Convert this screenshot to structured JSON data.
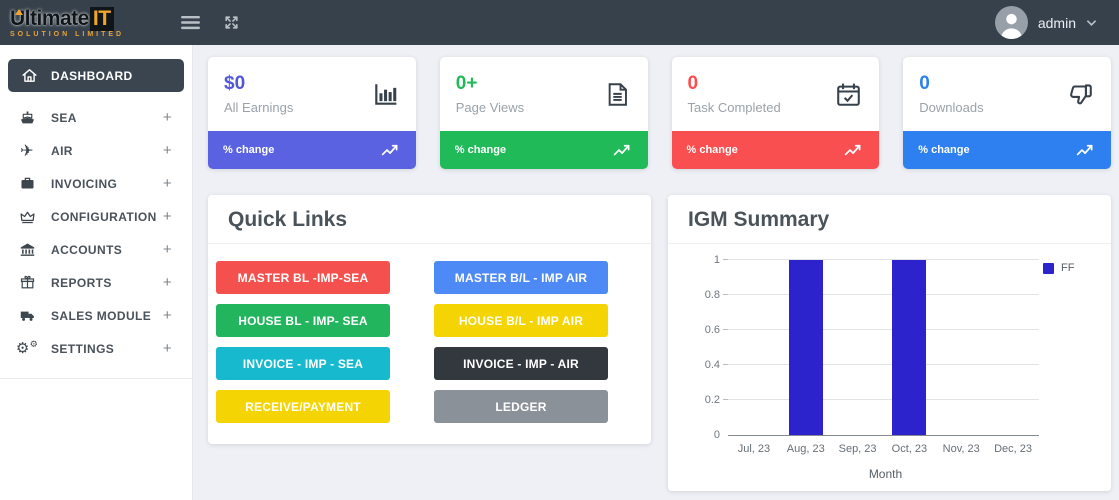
{
  "header": {
    "logo": {
      "brand": "Ultimate",
      "brand_accent": "IT",
      "subtitle": "SOLUTION LIMITED",
      "accent_color": "#f2a52b"
    },
    "user": {
      "name": "admin"
    }
  },
  "sidebar": {
    "expand_glyph": "+",
    "items": [
      {
        "label": "DASHBOARD",
        "icon": "home-icon",
        "active": true,
        "expandable": false
      },
      {
        "label": "SEA",
        "icon": "ship-icon",
        "active": false,
        "expandable": true
      },
      {
        "label": "AIR",
        "icon": "plane-icon",
        "active": false,
        "expandable": true
      },
      {
        "label": "INVOICING",
        "icon": "briefcase-icon",
        "active": false,
        "expandable": true
      },
      {
        "label": "CONFIGURATION",
        "icon": "crown-icon",
        "active": false,
        "expandable": true
      },
      {
        "label": "ACCOUNTS",
        "icon": "bank-icon",
        "active": false,
        "expandable": true
      },
      {
        "label": "REPORTS",
        "icon": "gift-icon",
        "active": false,
        "expandable": true
      },
      {
        "label": "SALES MODULE",
        "icon": "truck-icon",
        "active": false,
        "expandable": true
      },
      {
        "label": "SETTINGS",
        "icon": "gear-icon",
        "active": false,
        "expandable": true
      }
    ]
  },
  "stat_cards": [
    {
      "value": "$0",
      "label": "All Earnings",
      "icon": "bar-chart-icon",
      "value_color": "#5058da",
      "footer_color": "#5a62e2",
      "footer_label": "% change"
    },
    {
      "value": "0+",
      "label": "Page Views",
      "icon": "document-icon",
      "value_color": "#21ba58",
      "footer_color": "#21ba58",
      "footer_label": "% change"
    },
    {
      "value": "0",
      "label": "Task Completed",
      "icon": "calendar-check-icon",
      "value_color": "#f94f50",
      "footer_color": "#f94f50",
      "footer_label": "% change"
    },
    {
      "value": "0",
      "label": "Downloads",
      "icon": "thumbs-down-icon",
      "value_color": "#2e80f0",
      "footer_color": "#2e80f0",
      "footer_label": "% change"
    }
  ],
  "quick_links": {
    "title": "Quick Links",
    "buttons": [
      {
        "label": "MASTER BL -IMP-SEA",
        "color": "#f4504d",
        "text_color": "#ffffff"
      },
      {
        "label": "MASTER B/L - IMP AIR",
        "color": "#4d8af5",
        "text_color": "#ffffff"
      },
      {
        "label": "HOUSE BL - IMP- SEA",
        "color": "#22b55e",
        "text_color": "#ffffff"
      },
      {
        "label": "HOUSE B/L - IMP AIR",
        "color": "#f4d503",
        "text_color": "#ffffff"
      },
      {
        "label": "INVOICE - IMP - SEA",
        "color": "#17b9cf",
        "text_color": "#ffffff"
      },
      {
        "label": "INVOICE - IMP - AIR",
        "color": "#32383e",
        "text_color": "#ffffff"
      },
      {
        "label": "RECEIVE/PAYMENT",
        "color": "#f4d503",
        "text_color": "#ffffff"
      },
      {
        "label": "LEDGER",
        "color": "#8b9198",
        "text_color": "#ffffff"
      }
    ]
  },
  "igm": {
    "title": "IGM Summary"
  },
  "chart_data": {
    "type": "bar",
    "title": "IGM Summary",
    "categories": [
      "Jul, 23",
      "Aug, 23",
      "Sep, 23",
      "Oct, 23",
      "Nov, 23",
      "Dec, 23"
    ],
    "series": [
      {
        "name": "FF",
        "color": "#2d23cd",
        "values": [
          0,
          1,
          0,
          1,
          0,
          0
        ]
      }
    ],
    "xlabel": "Month",
    "ylabel": "",
    "ylim": [
      0,
      1
    ],
    "yticks": [
      0,
      0.2,
      0.4,
      0.6,
      0.8,
      1
    ],
    "grid": true,
    "legend_position": "right"
  }
}
